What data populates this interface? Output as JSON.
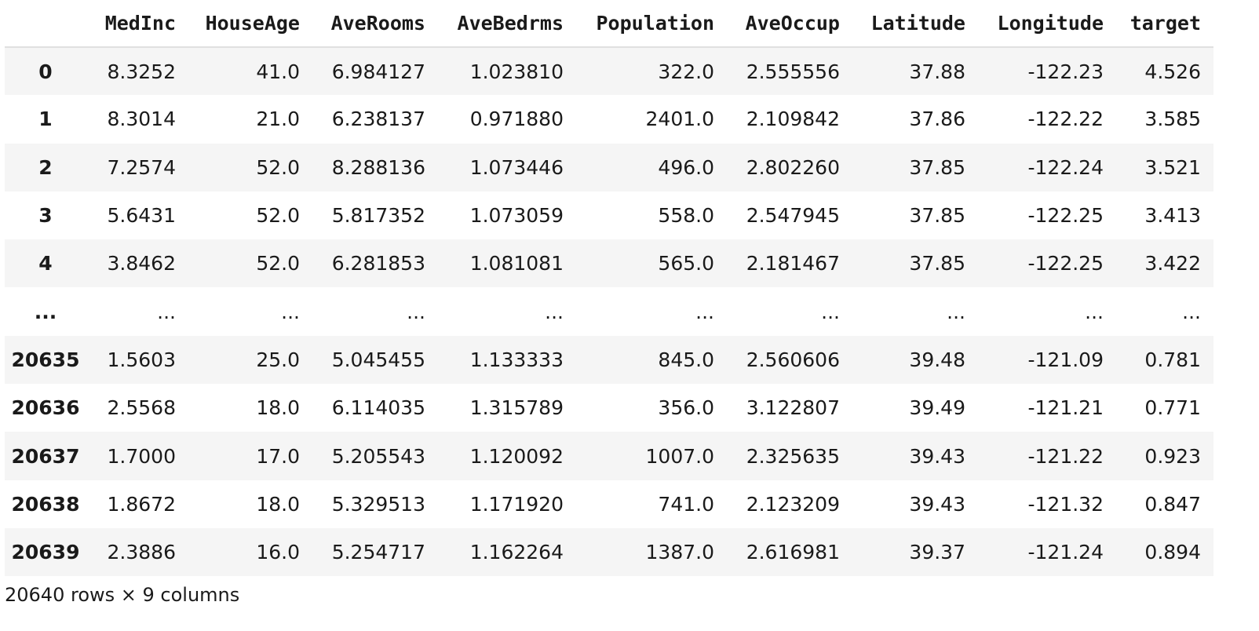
{
  "table": {
    "corner": "",
    "columns": [
      "MedInc",
      "HouseAge",
      "AveRooms",
      "AveBedrms",
      "Population",
      "AveOccup",
      "Latitude",
      "Longitude",
      "target"
    ],
    "rows": [
      {
        "index": "0",
        "values": [
          "8.3252",
          "41.0",
          "6.984127",
          "1.023810",
          "322.0",
          "2.555556",
          "37.88",
          "-122.23",
          "4.526"
        ]
      },
      {
        "index": "1",
        "values": [
          "8.3014",
          "21.0",
          "6.238137",
          "0.971880",
          "2401.0",
          "2.109842",
          "37.86",
          "-122.22",
          "3.585"
        ]
      },
      {
        "index": "2",
        "values": [
          "7.2574",
          "52.0",
          "8.288136",
          "1.073446",
          "496.0",
          "2.802260",
          "37.85",
          "-122.24",
          "3.521"
        ]
      },
      {
        "index": "3",
        "values": [
          "5.6431",
          "52.0",
          "5.817352",
          "1.073059",
          "558.0",
          "2.547945",
          "37.85",
          "-122.25",
          "3.413"
        ]
      },
      {
        "index": "4",
        "values": [
          "3.8462",
          "52.0",
          "6.281853",
          "1.081081",
          "565.0",
          "2.181467",
          "37.85",
          "-122.25",
          "3.422"
        ]
      },
      {
        "index": "...",
        "values": [
          "...",
          "...",
          "...",
          "...",
          "...",
          "...",
          "...",
          "...",
          "..."
        ]
      },
      {
        "index": "20635",
        "values": [
          "1.5603",
          "25.0",
          "5.045455",
          "1.133333",
          "845.0",
          "2.560606",
          "39.48",
          "-121.09",
          "0.781"
        ]
      },
      {
        "index": "20636",
        "values": [
          "2.5568",
          "18.0",
          "6.114035",
          "1.315789",
          "356.0",
          "3.122807",
          "39.49",
          "-121.21",
          "0.771"
        ]
      },
      {
        "index": "20637",
        "values": [
          "1.7000",
          "17.0",
          "5.205543",
          "1.120092",
          "1007.0",
          "2.325635",
          "39.43",
          "-121.22",
          "0.923"
        ]
      },
      {
        "index": "20638",
        "values": [
          "1.8672",
          "18.0",
          "5.329513",
          "1.171920",
          "741.0",
          "2.123209",
          "39.43",
          "-121.32",
          "0.847"
        ]
      },
      {
        "index": "20639",
        "values": [
          "2.3886",
          "16.0",
          "5.254717",
          "1.162264",
          "1387.0",
          "2.616981",
          "39.37",
          "-121.24",
          "0.894"
        ]
      }
    ]
  },
  "footer": {
    "shape_text": "20640 rows × 9 columns"
  },
  "colors": {
    "stripe": "#f5f5f5",
    "header_rule": "#e0e0e0",
    "text": "#1a1a1a"
  }
}
